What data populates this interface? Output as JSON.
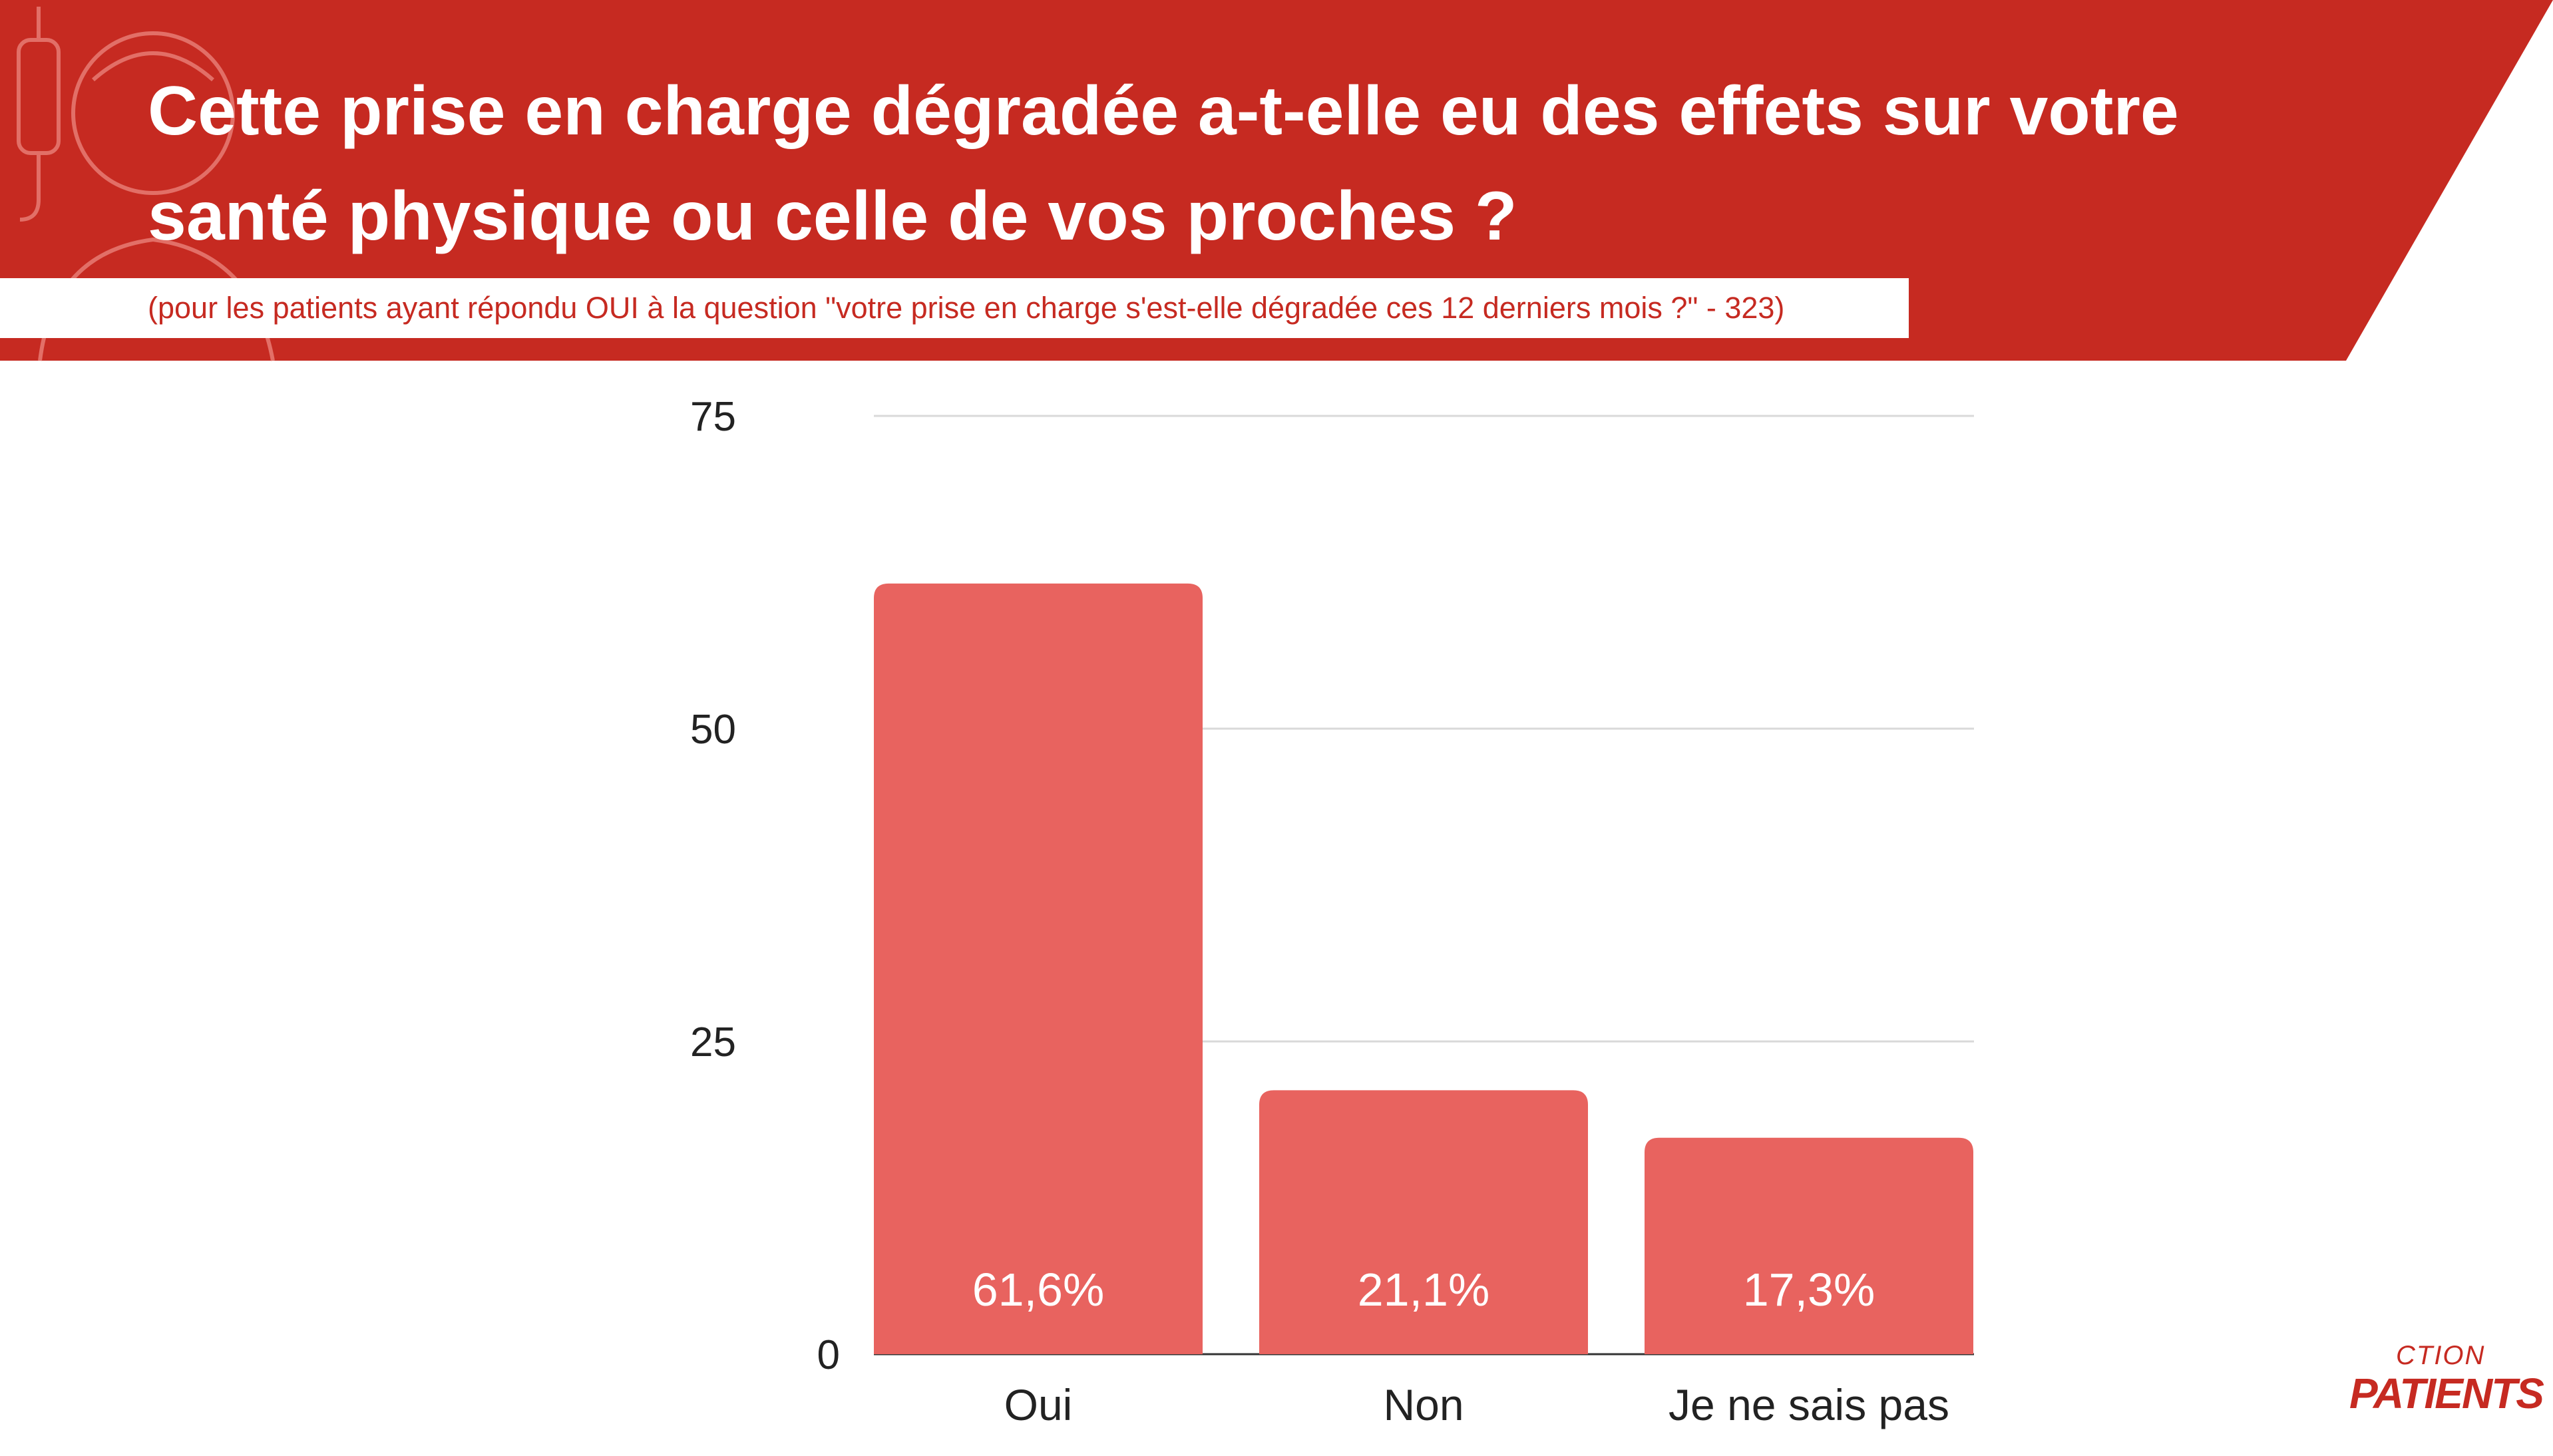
{
  "header": {
    "title": "Cette prise en charge dégradée a-t-elle eu des effets sur votre santé physique ou celle de vos proches ?",
    "subtitle": "(pour les patients ayant répondu OUI à la question \"votre prise en charge s'est-elle dégradée ces 12 derniers mois ?\" - 323)",
    "banner_color": "#c62a21"
  },
  "logo": {
    "top_text": "CTION",
    "bottom_text": "PATIENTS"
  },
  "chart_data": {
    "type": "bar",
    "title": "Cette prise en charge dégradée a-t-elle eu des effets sur votre santé physique ou celle de vos proches ?",
    "categories": [
      "Oui",
      "Non",
      "Je ne sais pas"
    ],
    "values": [
      61.6,
      21.1,
      17.3
    ],
    "data_labels": [
      "61,6%",
      "21,1%",
      "17,3%"
    ],
    "yticks": [
      0,
      25,
      50,
      75
    ],
    "ylim": [
      0,
      75
    ],
    "grid": true,
    "bar_color": "#e8635f",
    "label_color": "#ffffff"
  }
}
